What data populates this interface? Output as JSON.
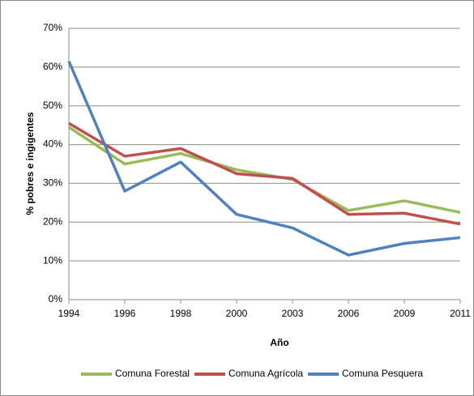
{
  "chart_data": {
    "type": "line",
    "categories": [
      "1994",
      "1996",
      "1998",
      "2000",
      "2003",
      "2006",
      "2009",
      "2011"
    ],
    "series": [
      {
        "name": "Comuna Forestal",
        "color": "#9bbb59",
        "values": [
          44.5,
          35,
          37.7,
          33.5,
          31,
          23,
          25.5,
          22.5
        ]
      },
      {
        "name": "Comuna Agrícola",
        "color": "#c0504d",
        "values": [
          45.5,
          37,
          39,
          32.5,
          31.3,
          22,
          22.3,
          19.5
        ]
      },
      {
        "name": "Comuna Pesquera",
        "color": "#4f81bd",
        "values": [
          61.5,
          28,
          35.5,
          22,
          18.5,
          11.5,
          14.5,
          16
        ]
      }
    ],
    "x_label": "Año",
    "y_label": "% pobres e ingigentes",
    "ylim": [
      0,
      70
    ],
    "yticks": [
      {
        "value": 0,
        "label": "0%"
      },
      {
        "value": 10,
        "label": "10%"
      },
      {
        "value": 20,
        "label": "20%"
      },
      {
        "value": 30,
        "label": "30%"
      },
      {
        "value": 40,
        "label": "40%"
      },
      {
        "value": 50,
        "label": "50%"
      },
      {
        "value": 60,
        "label": "60%"
      },
      {
        "value": 70,
        "label": "70%"
      }
    ],
    "grid": true,
    "legend": "bottom"
  }
}
